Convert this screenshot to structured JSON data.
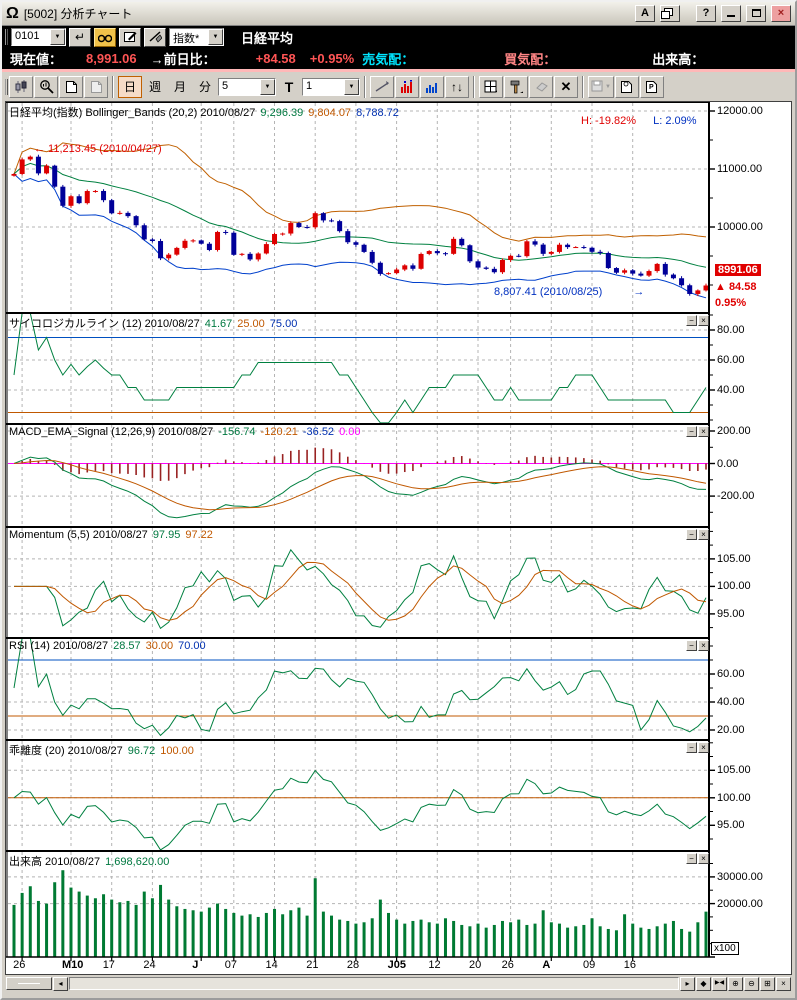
{
  "titlebar": {
    "title": "[5002] 分析チャート",
    "font_button": "A",
    "help_label": "?"
  },
  "icons": {
    "app_logo": "Ω",
    "close_x": "×",
    "dropdown_arrow": "▼",
    "enter": "↵",
    "updown": "↑↓",
    "delete_x": "✕",
    "panel_minimize": "−",
    "panel_close": "×",
    "scroll_left": "◂",
    "scroll_right": "▸",
    "nav_diamond": "◆",
    "nav_ends": "▶◀",
    "zoom_in": "⊕",
    "zoom_out": "⊖",
    "layout_grid": "⊞"
  },
  "toolbar1": {
    "code_value": "0101",
    "index_select": "指数*",
    "symbol_name": "日経平均"
  },
  "statusbar": {
    "current_label": "現在値：",
    "current_value": "8,991.06",
    "change_label": "→前日比：",
    "change_value": "+84.58",
    "change_pct": "+0.95%",
    "ask_label": "売気配：",
    "bid_label": "買気配：",
    "volume_label": "出来高："
  },
  "toolbar2": {
    "period_buttons": [
      "日",
      "週",
      "月",
      "分"
    ],
    "active_period": "日",
    "interval_value": "5",
    "t_label": "T",
    "count_value": "1"
  },
  "panels": [
    {
      "id": "main",
      "title": "日経平均(指数) Bollinger_Bands (20,2)",
      "date": "2010/08/27",
      "values": [
        {
          "text": "9,296.39",
          "color": "#007840"
        },
        {
          "text": "9,804.07",
          "color": "#c05800"
        },
        {
          "text": "8,788.72",
          "color": "#0030b0"
        }
      ],
      "ymin": 8534,
      "ymax": 12155,
      "yticks": [
        12000,
        11000,
        10000
      ],
      "minor": 500,
      "has_buttons": false
    },
    {
      "id": "psych",
      "title": "サイコロジカルライン (12)",
      "date": "2010/08/27",
      "values": [
        {
          "text": "41.67",
          "color": "#007840"
        },
        {
          "text": "25.00",
          "color": "#c05800"
        },
        {
          "text": "75.00",
          "color": "#0030b0"
        }
      ],
      "ymin": 18,
      "ymax": 91.3,
      "yticks": [
        80,
        60,
        40
      ],
      "minor": 10,
      "hlines": [
        {
          "v": 75,
          "color": "#0050c0"
        },
        {
          "v": 25,
          "color": "#c05800"
        }
      ],
      "has_buttons": true
    },
    {
      "id": "macd",
      "title": "MACD_EMA_Signal (12,26,9)",
      "date": "2010/08/27",
      "values": [
        {
          "text": "-156.74",
          "color": "#007840"
        },
        {
          "text": "-120.21",
          "color": "#c05800"
        },
        {
          "text": "-36.52",
          "color": "#0030b0"
        },
        {
          "text": "0.00",
          "color": "#ff00ff"
        }
      ],
      "ymin": -384,
      "ymax": 243,
      "yticks": [
        200,
        0,
        -200
      ],
      "minor": 100,
      "hlines": [
        {
          "v": 0,
          "color": "#ff00ff"
        }
      ],
      "has_buttons": true
    },
    {
      "id": "mom",
      "title": "Momentum (5,5)",
      "date": "2010/08/27",
      "values": [
        {
          "text": "97.95",
          "color": "#007840"
        },
        {
          "text": "97.22",
          "color": "#c05800"
        }
      ],
      "ymin": 90.8,
      "ymax": 110.8,
      "yticks": [
        105,
        100,
        95
      ],
      "minor": 2.5,
      "has_buttons": true
    },
    {
      "id": "rsi",
      "title": "RSI (14)",
      "date": "2010/08/27",
      "values": [
        {
          "text": "28.57",
          "color": "#007840"
        },
        {
          "text": "30.00",
          "color": "#c05800"
        },
        {
          "text": "70.00",
          "color": "#0030b0"
        }
      ],
      "ymin": 13.6,
      "ymax": 85.7,
      "yticks": [
        60,
        40,
        20
      ],
      "minor": 10,
      "hlines": [
        {
          "v": 70,
          "color": "#0050c0"
        },
        {
          "v": 30,
          "color": "#c05800"
        }
      ],
      "has_buttons": true
    },
    {
      "id": "kairi",
      "title": "乖離度 (20)",
      "date": "2010/08/27",
      "values": [
        {
          "text": "96.72",
          "color": "#007840"
        },
        {
          "text": "100.00",
          "color": "#c05800"
        }
      ],
      "ymin": 90.5,
      "ymax": 110.5,
      "yticks": [
        105,
        100,
        95
      ],
      "minor": 2.5,
      "hlines": [
        {
          "v": 100,
          "color": "#c05800"
        }
      ],
      "has_buttons": true
    },
    {
      "id": "vol",
      "title": "出来高",
      "date": "2010/08/27",
      "values": [
        {
          "text": "1,698,620.00",
          "color": "#007840"
        }
      ],
      "ymin": 0,
      "ymax": 39700,
      "yticks": [
        30000,
        20000
      ],
      "minor": 5000,
      "has_buttons": true
    }
  ],
  "main_annotations": {
    "high_label": "← 11,213.45 (2010/04/27)",
    "low_label": "8,807.41 (2010/08/25)",
    "low_arrow": "→",
    "h_label": "H: -19.82%",
    "l_label": "L: 2.09%",
    "price_callout": "8991.06",
    "price_change": "▲ 84.58",
    "price_pct": "0.95%"
  },
  "volume_multiplier": "x100",
  "x_axis": {
    "labels": [
      "26",
      "M10",
      "17",
      "24",
      "J",
      "07",
      "14",
      "21",
      "28",
      "J05",
      "12",
      "20",
      "26",
      "A",
      "09",
      "16"
    ],
    "tick_indices": [
      1,
      7,
      12,
      17,
      23,
      27,
      32,
      37,
      42,
      47,
      52,
      57,
      61,
      66,
      71,
      76
    ]
  },
  "chart_data": {
    "type": "candlestick+indicators",
    "title": "日経平均(指数)",
    "indicator_params": {
      "bollinger": [
        20,
        2
      ],
      "psychological": 12,
      "macd": [
        12,
        26,
        9
      ],
      "momentum": [
        5,
        5
      ],
      "rsi": 14,
      "kairi": 20
    },
    "colors": {
      "up": "#dd0000",
      "down": "#000099",
      "sma": "#008040",
      "upper_band": "#c06000",
      "lower_band": "#0040cc",
      "indicator": "#008040",
      "signal": "#c05800",
      "hist": "#992222",
      "zero": "#ff00ff",
      "volume": "#007a33",
      "grid": "#b4b4b4"
    },
    "close": [
      10914,
      11165,
      11212,
      10924,
      11057,
      10695,
      10365,
      10530,
      10411,
      10620,
      10621,
      10462,
      10236,
      10243,
      10187,
      10030,
      9785,
      9758,
      9460,
      9523,
      9639,
      9762,
      9769,
      9711,
      9603,
      9914,
      9901,
      9520,
      9537,
      9440,
      9543,
      9705,
      9879,
      9887,
      10068,
      9999,
      9995,
      10238,
      10113,
      10101,
      9928,
      9737,
      9693,
      9570,
      9383,
      9191,
      9204,
      9266,
      9338,
      9279,
      9535,
      9585,
      9548,
      9537,
      9795,
      9685,
      9408,
      9300,
      9278,
      9220,
      9431,
      9503,
      9497,
      9753,
      9696,
      9537,
      9570,
      9694,
      9653,
      9654,
      9642,
      9572,
      9551,
      9292,
      9212,
      9253,
      9196,
      9161,
      9240,
      9363,
      9179,
      9116,
      8995,
      8845,
      8906,
      8991
    ],
    "volume": [
      19500,
      24000,
      26500,
      21000,
      20000,
      28000,
      32500,
      26000,
      24500,
      23000,
      22000,
      23500,
      21500,
      20500,
      21000,
      19500,
      24500,
      22000,
      27000,
      21500,
      19000,
      18000,
      17500,
      17000,
      18500,
      20000,
      18000,
      16500,
      15500,
      16000,
      15000,
      16500,
      18000,
      16000,
      17500,
      18500,
      15500,
      29500,
      17000,
      15500,
      14000,
      13500,
      12500,
      13000,
      14500,
      21500,
      16500,
      14000,
      12500,
      13500,
      14000,
      13000,
      12500,
      14500,
      13500,
      12000,
      11500,
      12500,
      11000,
      12000,
      13500,
      13000,
      14000,
      12000,
      12500,
      17500,
      13000,
      12500,
      11000,
      11500,
      12000,
      14500,
      11500,
      10500,
      10000,
      16000,
      12500,
      11000,
      10500,
      11500,
      12500,
      13500,
      10500,
      9500,
      13000,
      16986
    ]
  }
}
